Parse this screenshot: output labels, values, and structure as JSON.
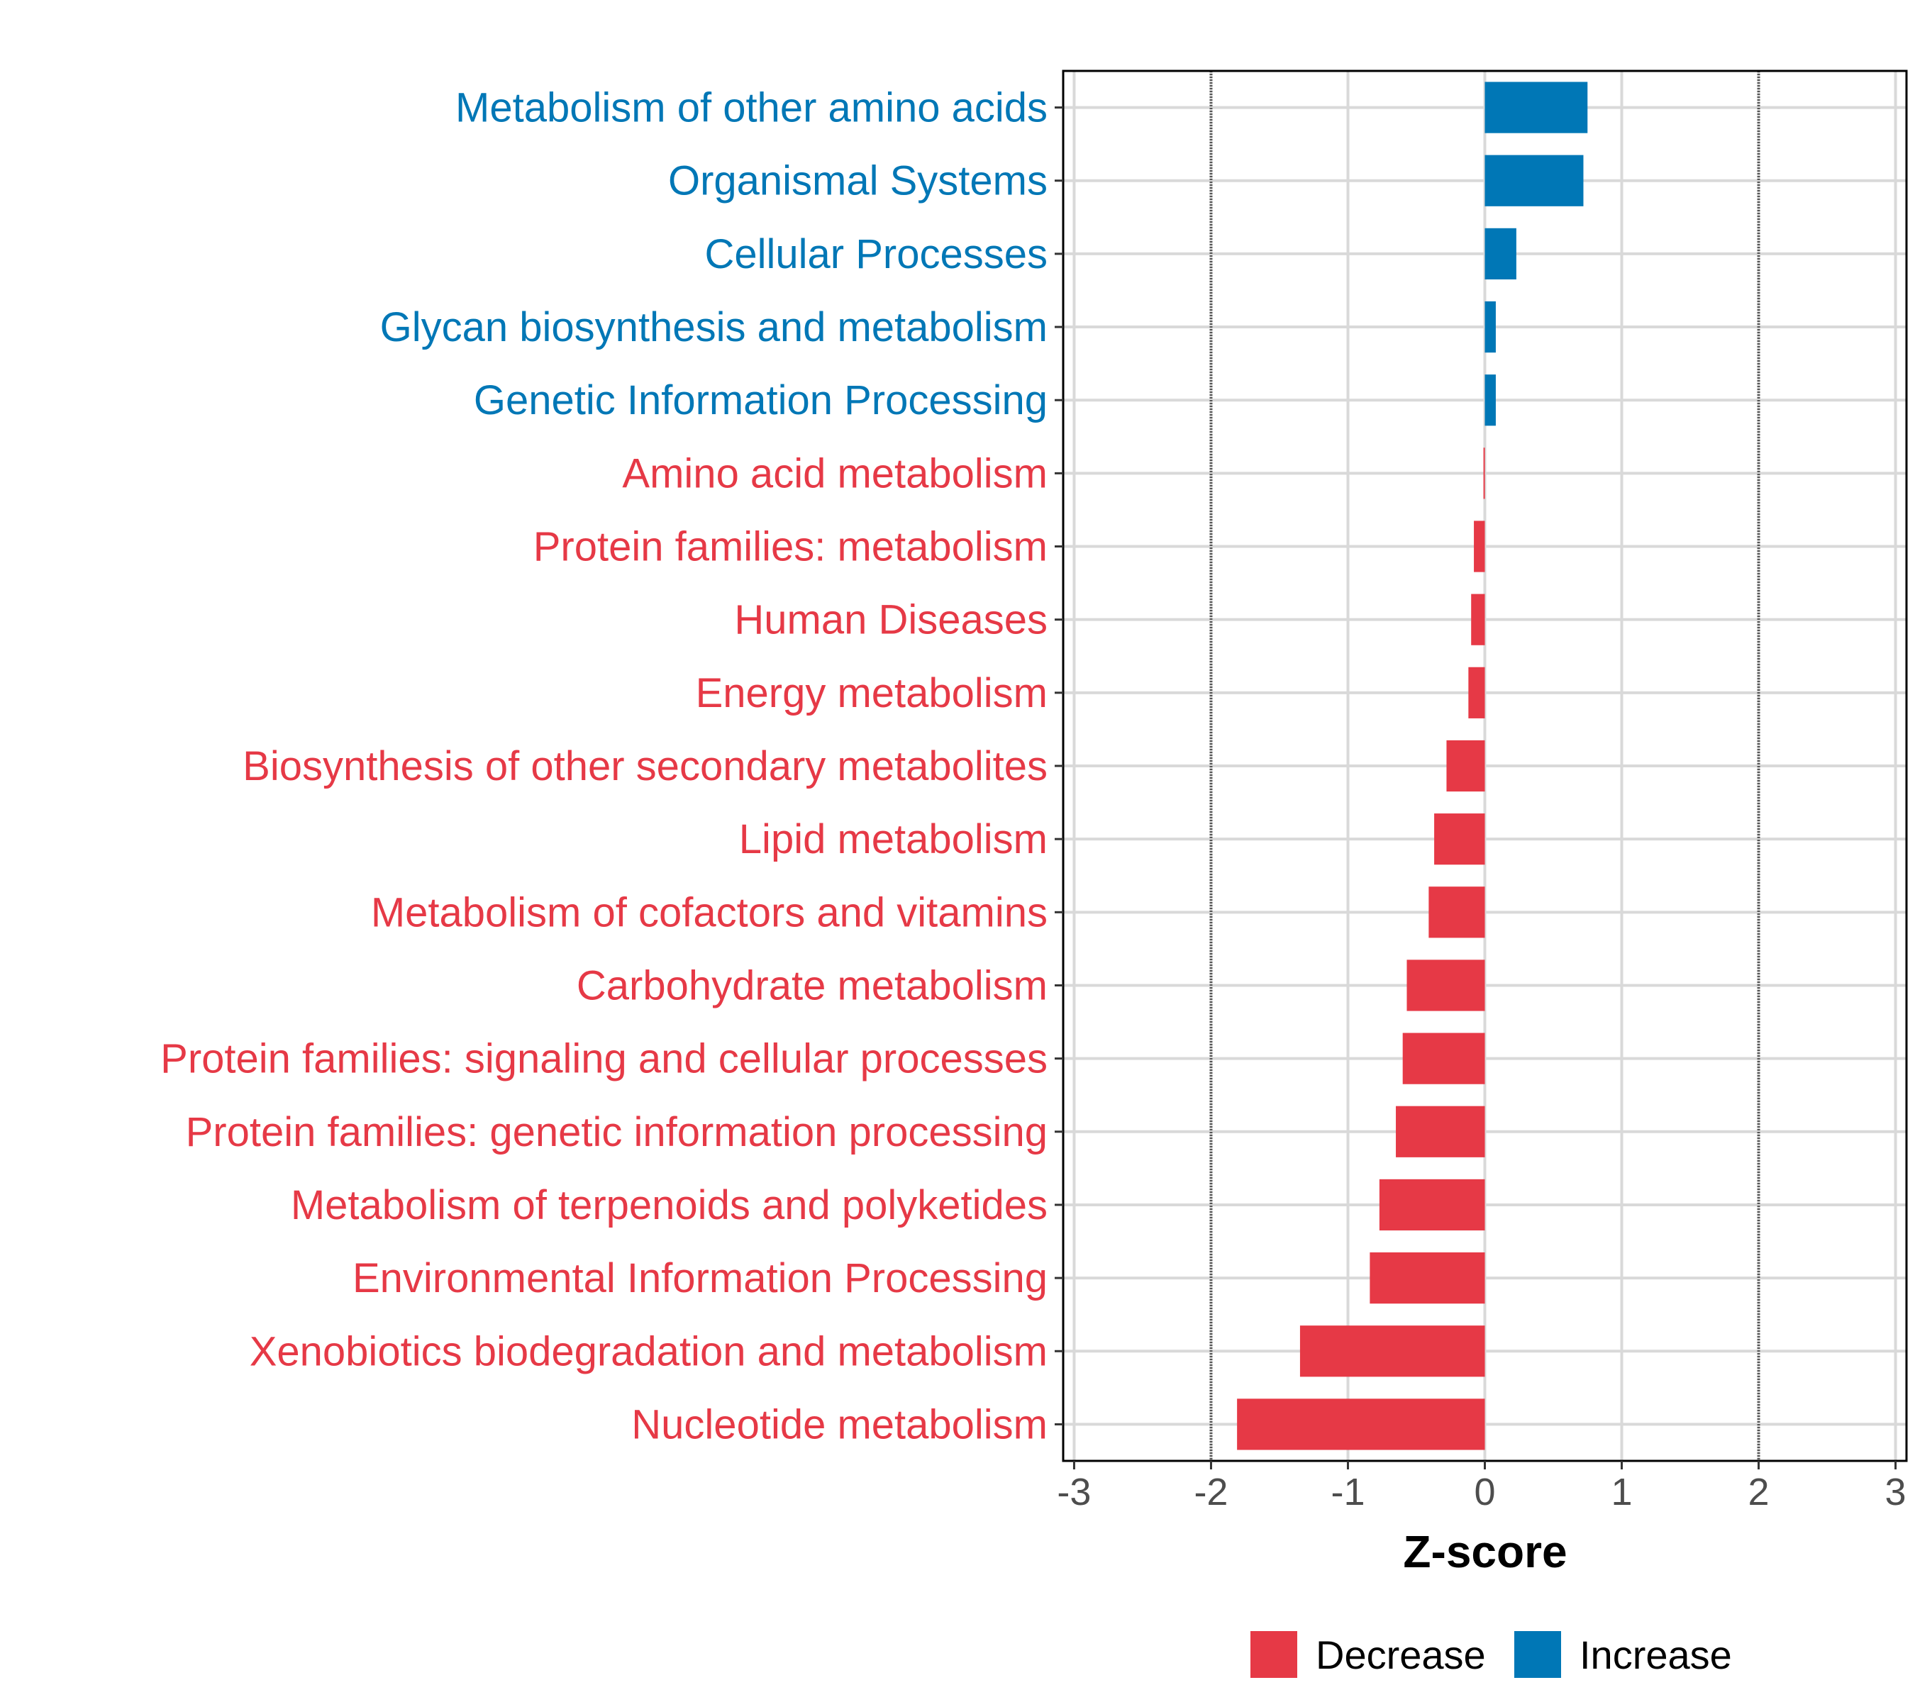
{
  "chart_data": {
    "type": "bar",
    "orientation": "horizontal",
    "title": "",
    "xlabel": "Z-score",
    "ylabel": "",
    "xlim": [
      -3.08,
      3.08
    ],
    "xticks": [
      -3,
      -2,
      -1,
      0,
      1,
      2,
      3
    ],
    "reference_lines": [
      -2,
      2
    ],
    "grid": true,
    "legend": {
      "placement": "bottom",
      "entries": [
        {
          "label": "Decrease",
          "color": "#E63946"
        },
        {
          "label": "Increase",
          "color": "#0077B6"
        }
      ]
    },
    "categories": [
      "Metabolism of other amino acids",
      "Organismal Systems",
      "Cellular Processes",
      "Glycan biosynthesis and metabolism",
      "Genetic Information Processing",
      "Amino acid metabolism",
      "Protein families: metabolism",
      "Human Diseases",
      "Energy metabolism",
      "Biosynthesis of other secondary metabolites",
      "Lipid metabolism",
      "Metabolism of cofactors and vitamins",
      "Carbohydrate metabolism",
      "Protein families: signaling and cellular processes",
      "Protein families: genetic information processing",
      "Metabolism of terpenoids and polyketides",
      "Environmental Information Processing",
      "Xenobiotics biodegradation and metabolism",
      "Nucleotide metabolism"
    ],
    "values": [
      0.75,
      0.72,
      0.23,
      0.08,
      0.08,
      -0.01,
      -0.08,
      -0.1,
      -0.12,
      -0.28,
      -0.37,
      -0.41,
      -0.57,
      -0.6,
      -0.65,
      -0.77,
      -0.84,
      -1.35,
      -1.81
    ]
  }
}
